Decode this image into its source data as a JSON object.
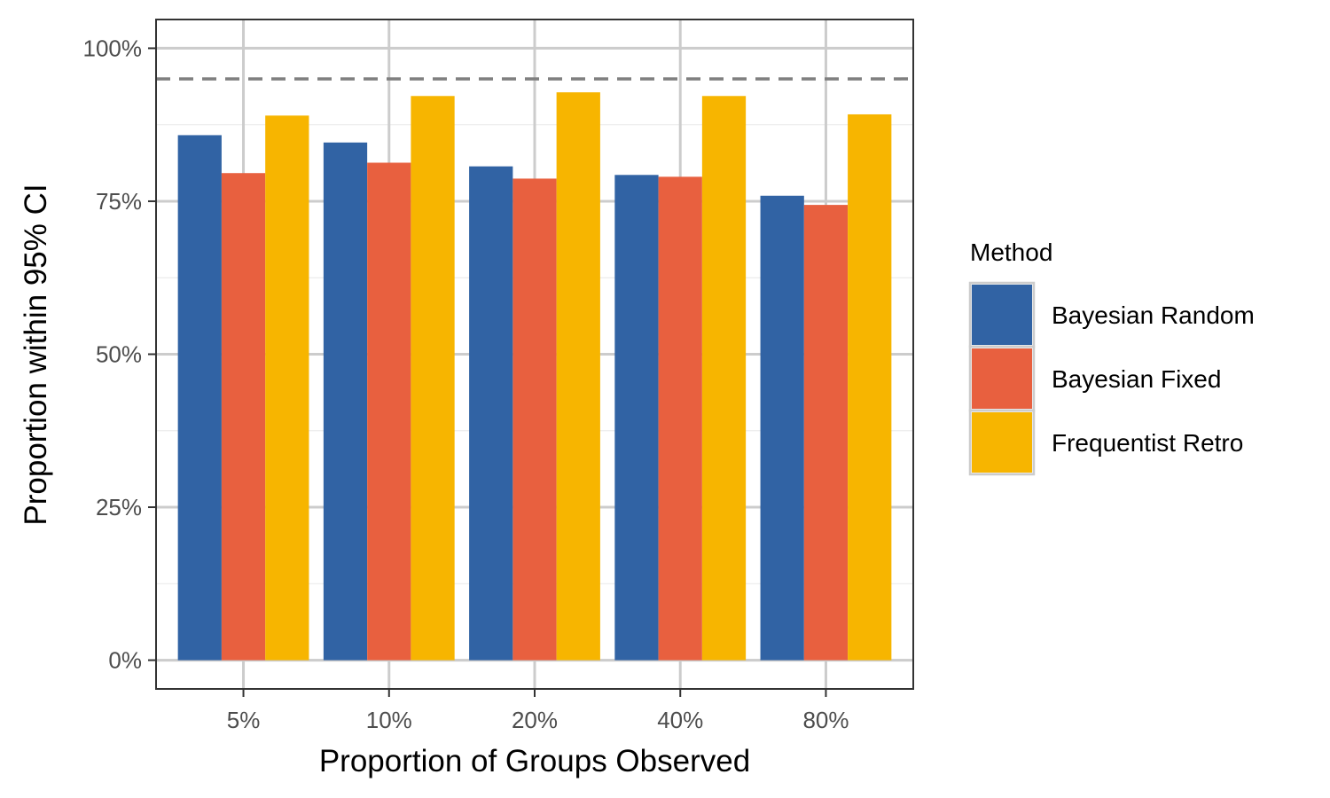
{
  "chart_data": {
    "type": "bar",
    "title": "",
    "xlabel": "Proportion of Groups Observed",
    "ylabel": "Proportion within 95% CI",
    "categories": [
      "5%",
      "10%",
      "20%",
      "40%",
      "80%"
    ],
    "series": [
      {
        "name": "Bayesian Random",
        "color": "#3163A4",
        "values": [
          0.858,
          0.846,
          0.807,
          0.793,
          0.759
        ]
      },
      {
        "name": "Bayesian Fixed",
        "color": "#E8603F",
        "values": [
          0.796,
          0.813,
          0.787,
          0.79,
          0.744
        ]
      },
      {
        "name": "Frequentist Retro",
        "color": "#F7B500",
        "values": [
          0.89,
          0.922,
          0.928,
          0.922,
          0.892
        ]
      }
    ],
    "ylim": [
      -0.047,
      1.047
    ],
    "yticks": [
      0,
      0.25,
      0.5,
      0.75,
      1.0
    ],
    "ytick_labels": [
      "0%",
      "25%",
      "50%",
      "75%",
      "100%"
    ],
    "reference_line": {
      "y": 0.95,
      "style": "dashed",
      "color": "#7f7f7f"
    },
    "grid": true,
    "legend": {
      "title": "Method",
      "position": "right"
    }
  }
}
